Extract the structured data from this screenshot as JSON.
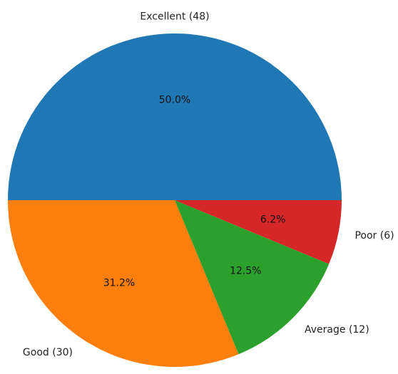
{
  "chart_data": {
    "type": "pie",
    "title": "",
    "start_angle_deg": 0,
    "direction": "counterclockwise",
    "slices": [
      {
        "label": "Excellent (48)",
        "value": 48,
        "percent_label": "50.0%",
        "color": "#1f77b4"
      },
      {
        "label": "Good (30)",
        "value": 30,
        "percent_label": "31.2%",
        "color": "#ff7f0e"
      },
      {
        "label": "Average (12)",
        "value": 12,
        "percent_label": "12.5%",
        "color": "#2ca02c"
      },
      {
        "label": "Poor (6)",
        "value": 6,
        "percent_label": "6.2%",
        "color": "#d62728"
      }
    ]
  }
}
